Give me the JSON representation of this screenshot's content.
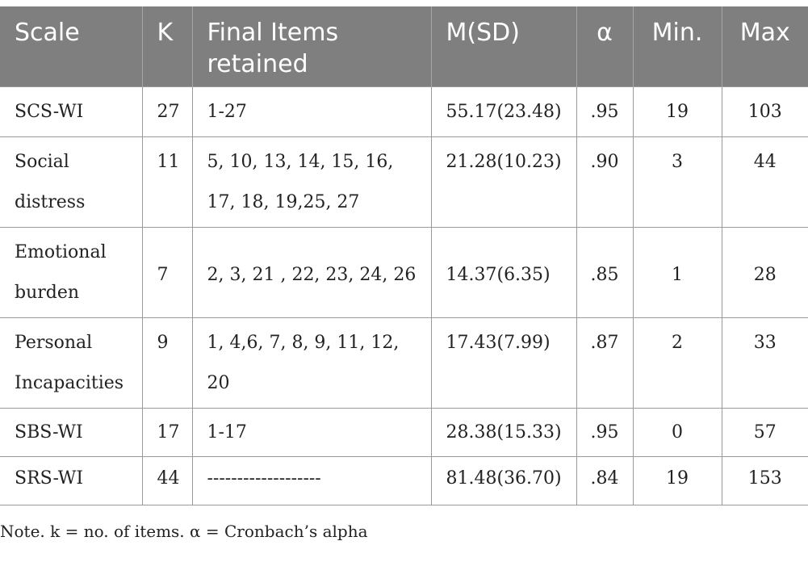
{
  "table": {
    "headers": {
      "scale": "Scale",
      "k": "K",
      "items": "Final Items retained",
      "msd": "M(SD)",
      "alpha": "α",
      "min": "Min.",
      "max": "Max"
    },
    "rows": [
      {
        "scale": "SCS-WI",
        "k": "27",
        "items": "1-27",
        "msd": "55.17(23.48)",
        "alpha": ".95",
        "min": "19",
        "max": "103"
      },
      {
        "scale": "Social distress",
        "k": "11",
        "items": "5, 10, 13, 14, 15, 16, 17, 18, 19,25, 27",
        "msd": "21.28(10.23)",
        "alpha": ".90",
        "min": "3",
        "max": "44"
      },
      {
        "scale": "Emotional burden",
        "k": "7",
        "items": "2, 3, 21 , 22, 23, 24, 26",
        "msd": "14.37(6.35)",
        "alpha": ".85",
        "min": "1",
        "max": "28"
      },
      {
        "scale": "Personal Incapacities",
        "k": "9",
        "items": "1, 4,6, 7, 8, 9, 11, 12, 20",
        "msd": "17.43(7.99)",
        "alpha": ".87",
        "min": "2",
        "max": "33"
      },
      {
        "scale": "SBS-WI",
        "k": "17",
        "items": "1-17",
        "msd": "28.38(15.33)",
        "alpha": ".95",
        "min": "0",
        "max": "57"
      },
      {
        "scale": "SRS-WI",
        "k": "44",
        "items": "-------------------",
        "msd": "81.48(36.70)",
        "alpha": ".84",
        "min": "19",
        "max": "153"
      }
    ]
  },
  "note": "Note. k = no. of items. α = Cronbach’s alpha"
}
